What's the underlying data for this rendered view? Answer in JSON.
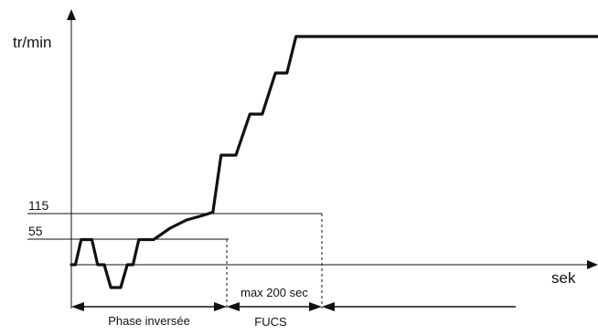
{
  "chart_data": {
    "type": "line",
    "ylabel": "tr/min",
    "xlabel": "sek",
    "yticks": [
      {
        "value": 55,
        "label": "55"
      },
      {
        "value": 115,
        "label": "115"
      }
    ],
    "series": [
      {
        "points": [
          [
            0,
            0
          ],
          [
            5,
            0
          ],
          [
            12,
            55
          ],
          [
            25,
            55
          ],
          [
            32,
            0
          ],
          [
            40,
            0
          ],
          [
            48,
            -50
          ],
          [
            60,
            -50
          ],
          [
            68,
            0
          ],
          [
            75,
            0
          ],
          [
            82,
            55
          ],
          [
            100,
            55
          ],
          [
            120,
            80
          ],
          [
            140,
            98
          ],
          [
            160,
            108
          ],
          [
            172,
            115
          ],
          [
            182,
            240
          ],
          [
            200,
            240
          ],
          [
            217,
            330
          ],
          [
            232,
            330
          ],
          [
            248,
            420
          ],
          [
            262,
            420
          ],
          [
            273,
            500
          ],
          [
            650,
            500
          ]
        ]
      }
    ],
    "annotations": [
      {
        "text": "Phase inversée",
        "from": 0,
        "to": 100
      },
      {
        "text": "max 200 sec",
        "from": 100,
        "to": 172
      },
      {
        "text": "FUCS",
        "from": 100,
        "to": 172
      }
    ]
  }
}
